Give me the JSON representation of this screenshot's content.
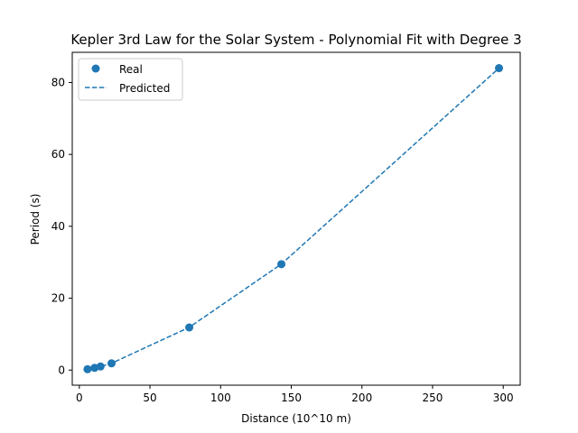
{
  "chart_data": {
    "type": "scatter",
    "title": "Kepler 3rd Law for the Solar System - Polynomial Fit with Degree 3",
    "xlabel": "Distance (10^10 m)",
    "ylabel": "Period (s)",
    "xlim": [
      -5,
      312
    ],
    "ylim": [
      -4.2,
      88.4
    ],
    "xticks": [
      0,
      50,
      100,
      150,
      200,
      250,
      300
    ],
    "yticks": [
      0,
      20,
      40,
      60,
      80
    ],
    "grid": false,
    "legend": "top-left",
    "series": [
      {
        "name": "Real",
        "kind": "scatter",
        "color": "#1f77b4",
        "x": [
          5.8,
          10.8,
          15.0,
          22.8,
          77.8,
          143.0,
          297.0
        ],
        "y": [
          0.24,
          0.62,
          1.0,
          1.88,
          11.86,
          29.46,
          84.0
        ]
      },
      {
        "name": "Predicted",
        "kind": "dashed-line",
        "color": "#1f77b4",
        "x": [
          5.8,
          10.8,
          15.0,
          22.8,
          77.8,
          143.0,
          297.0
        ],
        "y": [
          0.2,
          0.6,
          1.0,
          1.9,
          11.9,
          29.5,
          84.0
        ]
      }
    ]
  }
}
